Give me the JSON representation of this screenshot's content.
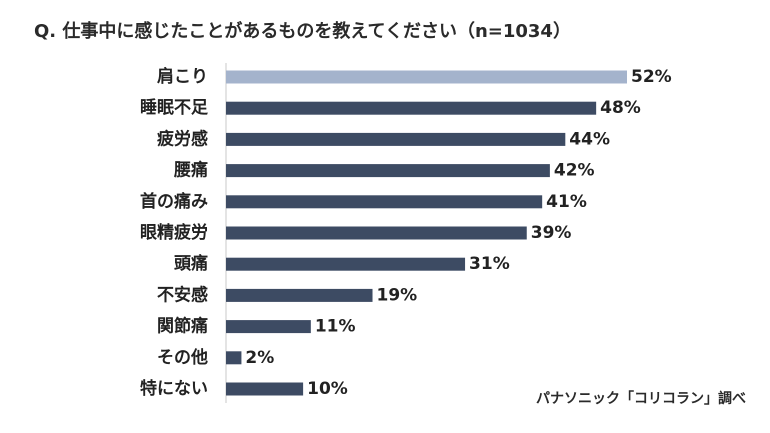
{
  "chart_data": {
    "type": "bar",
    "orientation": "horizontal",
    "title": "Q. 仕事中に感じたことがあるものを教えてください（n=1034）",
    "categories": [
      "肩こり",
      "睡眠不足",
      "疲労感",
      "腰痛",
      "首の痛み",
      "眼精疲労",
      "頭痛",
      "不安感",
      "関節痛",
      "その他",
      "特にない"
    ],
    "values": [
      52,
      48,
      44,
      42,
      41,
      39,
      31,
      19,
      11,
      2,
      10
    ],
    "value_labels": [
      "52%",
      "48%",
      "44%",
      "42%",
      "41%",
      "39%",
      "31%",
      "19%",
      "11%",
      "2%",
      "10%"
    ],
    "xlim": [
      0,
      100
    ],
    "highlight_index": 0,
    "colors": {
      "highlight": "#a4b3cc",
      "bar": "#3d4b63",
      "axis": "#c8c8c8"
    },
    "grid": false,
    "source": "パナソニック「コリコラン」調べ"
  }
}
